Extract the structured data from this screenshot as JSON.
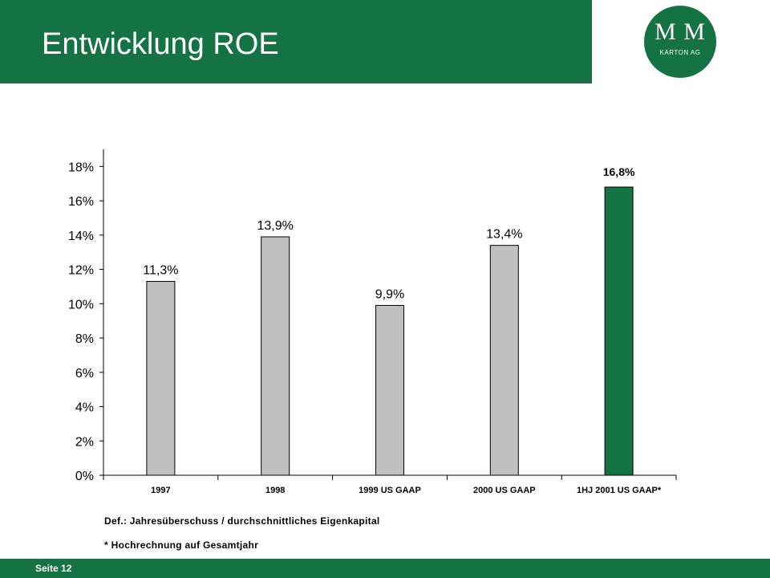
{
  "header": {
    "title": "Entwicklung ROE"
  },
  "logo": {
    "initials": "M M",
    "subtitle": "KARTON AG"
  },
  "footer": {
    "page_label": "Seite 12"
  },
  "notes": {
    "definition": "Def.: Jahresüberschuss  / durchschnittliches  Eigenkapital",
    "footnote": "* Hochrechnung  auf  Gesamtjahr"
  },
  "colors": {
    "brand": "#157245",
    "bar_default": "#c0c0c0",
    "bar_highlight": "#157245"
  },
  "chart_data": {
    "type": "bar",
    "categories": [
      "1997",
      "1998",
      "1999 US  GAAP",
      "2000 US GAAP",
      "1HJ 2001 US GAAP*"
    ],
    "values": [
      11.3,
      13.9,
      9.9,
      13.4,
      16.8
    ],
    "value_labels": [
      "11,3%",
      "13,9%",
      "9,9%",
      "13,4%",
      "16,8%"
    ],
    "highlight_index": 4,
    "ylim": [
      0,
      19
    ],
    "yticks": [
      0,
      2,
      4,
      6,
      8,
      10,
      12,
      14,
      16,
      18
    ],
    "ytick_labels": [
      "0%",
      "2%",
      "4%",
      "6%",
      "8%",
      "10%",
      "12%",
      "14%",
      "16%",
      "18%"
    ],
    "grid": false,
    "legend": "none"
  }
}
